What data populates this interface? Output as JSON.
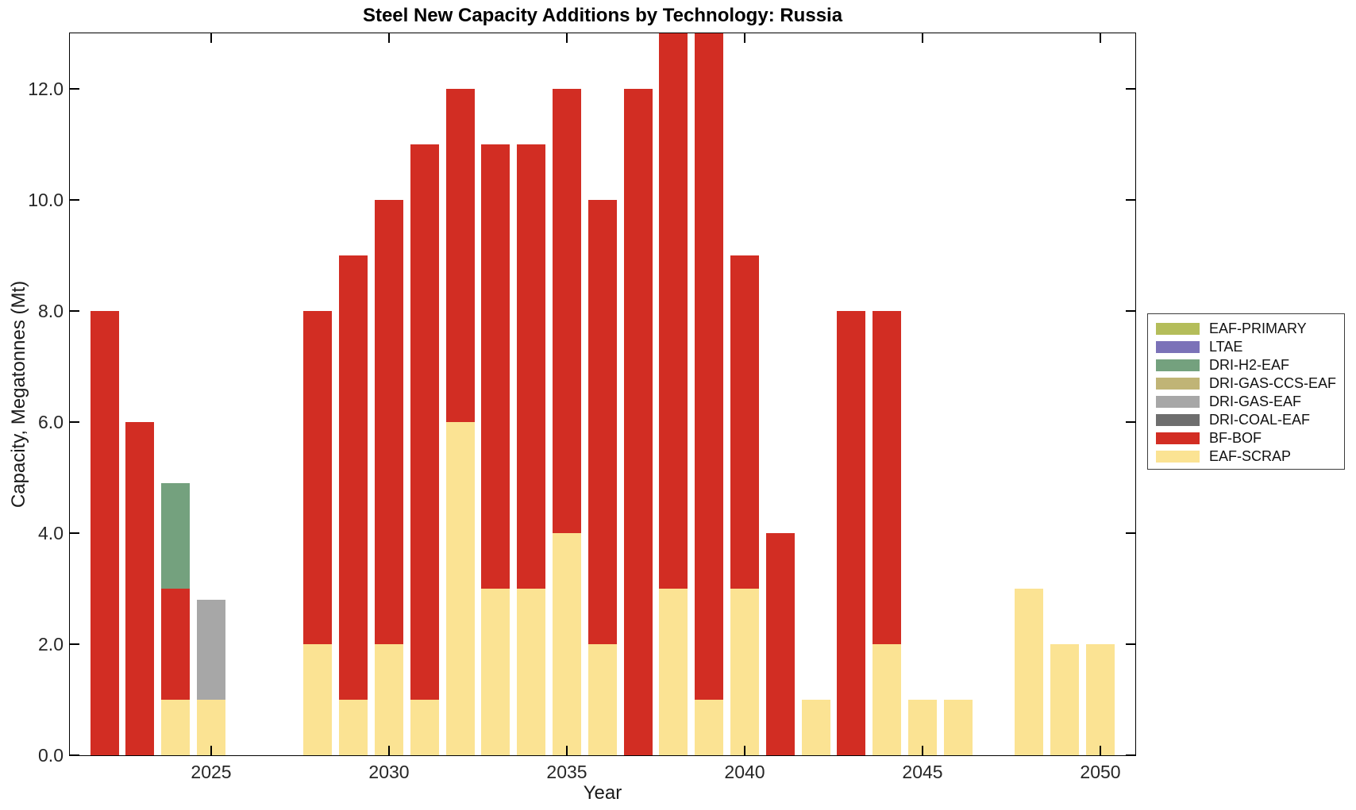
{
  "chart_data": {
    "type": "bar",
    "stacked": true,
    "title": "Steel New Capacity Additions by Technology: Russia",
    "xlabel": "Year",
    "ylabel": "Capacity, Megatonnes (Mt)",
    "xlim": [
      2021,
      2051
    ],
    "ylim": [
      0,
      13
    ],
    "grid": false,
    "legend_position": "center-right-outside",
    "bar_width_years": 0.8,
    "x_tick_labels": [
      "2025",
      "2030",
      "2035",
      "2040",
      "2045",
      "2050"
    ],
    "y_tick_labels": [
      "0.0",
      "2.0",
      "4.0",
      "6.0",
      "8.0",
      "10.0",
      "12.0"
    ],
    "years": [
      2022,
      2023,
      2024,
      2025,
      2026,
      2027,
      2028,
      2029,
      2030,
      2031,
      2032,
      2033,
      2034,
      2035,
      2036,
      2037,
      2038,
      2039,
      2040,
      2041,
      2042,
      2043,
      2044,
      2045,
      2046,
      2047,
      2048,
      2049,
      2050
    ],
    "stack_order_bottom_to_top": [
      "EAF-SCRAP",
      "BF-BOF",
      "DRI-COAL-EAF",
      "DRI-GAS-EAF",
      "DRI-GAS-CCS-EAF",
      "DRI-H2-EAF",
      "LTAE",
      "EAF-PRIMARY"
    ],
    "series": [
      {
        "name": "EAF-PRIMARY",
        "color": "#B4BD5A",
        "values": [
          0,
          0,
          0,
          0,
          0,
          0,
          0,
          0,
          0,
          0,
          0,
          0,
          0,
          0,
          0,
          0,
          0,
          0,
          0,
          0,
          0,
          0,
          0,
          0,
          0,
          0,
          0,
          0,
          0
        ]
      },
      {
        "name": "LTAE",
        "color": "#7B72B8",
        "values": [
          0,
          0,
          0,
          0,
          0,
          0,
          0,
          0,
          0,
          0,
          0,
          0,
          0,
          0,
          0,
          0,
          0,
          0,
          0,
          0,
          0,
          0,
          0,
          0,
          0,
          0,
          0,
          0,
          0
        ]
      },
      {
        "name": "DRI-H2-EAF",
        "color": "#74A17E",
        "values": [
          0,
          0,
          1.9,
          0,
          0,
          0,
          0,
          0,
          0,
          0,
          0,
          0,
          0,
          0,
          0,
          0,
          0,
          0,
          0,
          0,
          0,
          0,
          0,
          0,
          0,
          0,
          0,
          0,
          0
        ]
      },
      {
        "name": "DRI-GAS-CCS-EAF",
        "color": "#C0B476",
        "values": [
          0,
          0,
          0,
          0,
          0,
          0,
          0,
          0,
          0,
          0,
          0,
          0,
          0,
          0,
          0,
          0,
          0,
          0,
          0,
          0,
          0,
          0,
          0,
          0,
          0,
          0,
          0,
          0,
          0
        ]
      },
      {
        "name": "DRI-GAS-EAF",
        "color": "#A7A7A7",
        "values": [
          0,
          0,
          0,
          1.8,
          0,
          0,
          0,
          0,
          0,
          0,
          0,
          0,
          0,
          0,
          0,
          0,
          0,
          0,
          0,
          0,
          0,
          0,
          0,
          0,
          0,
          0,
          0,
          0,
          0
        ]
      },
      {
        "name": "DRI-COAL-EAF",
        "color": "#6E6E6E",
        "values": [
          0,
          0,
          0,
          0,
          0,
          0,
          0,
          0,
          0,
          0,
          0,
          0,
          0,
          0,
          0,
          0,
          0,
          0,
          0,
          0,
          0,
          0,
          0,
          0,
          0,
          0,
          0,
          0,
          0
        ]
      },
      {
        "name": "BF-BOF",
        "color": "#D22D23",
        "values": [
          8,
          6,
          2,
          0,
          0,
          0,
          6,
          8,
          8,
          10,
          6,
          8,
          8,
          8,
          8,
          12,
          10,
          12,
          6,
          4,
          0,
          8,
          6,
          0,
          0,
          0,
          0,
          0,
          0
        ]
      },
      {
        "name": "EAF-SCRAP",
        "color": "#FBE393",
        "values": [
          0,
          0,
          1,
          1,
          0,
          0,
          2,
          1,
          2,
          1,
          6,
          3,
          3,
          4,
          2,
          0,
          3,
          1,
          3,
          0,
          1,
          0,
          2,
          1,
          1,
          0,
          3,
          2,
          2
        ]
      }
    ],
    "note": "2038 and 2039 stacked totals reach the top of the y-axis (13 Mt) and appear clipped at the axes boundary."
  }
}
